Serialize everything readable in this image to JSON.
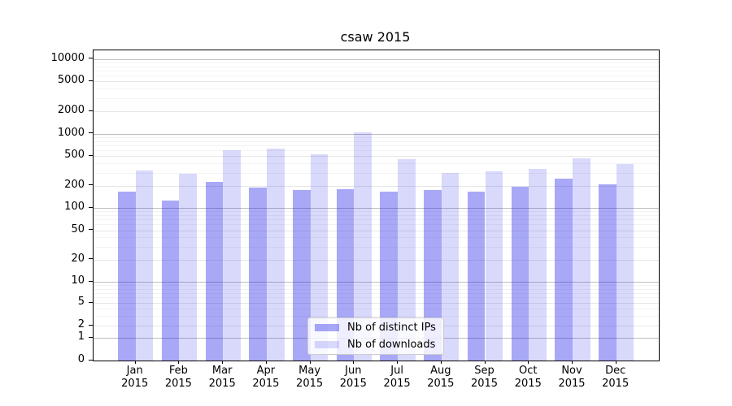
{
  "title": "csaw 2015",
  "chart_data": {
    "type": "bar",
    "title": "csaw 2015",
    "categories": [
      "Jan",
      "Feb",
      "Mar",
      "Apr",
      "May",
      "Jun",
      "Jul",
      "Aug",
      "Sep",
      "Oct",
      "Nov",
      "Dec"
    ],
    "x_tick_year": "2015",
    "series": [
      {
        "name": "Nb of distinct IPs",
        "color": "rgba(30,30,235,0.39)",
        "values": [
          165,
          125,
          225,
          190,
          175,
          180,
          165,
          175,
          165,
          195,
          248,
          210
        ]
      },
      {
        "name": "Nb of downloads",
        "color": "rgba(30,30,235,0.17)",
        "values": [
          325,
          290,
          600,
          640,
          530,
          1050,
          460,
          300,
          310,
          340,
          470,
          395
        ]
      }
    ],
    "yscale": "symlog",
    "ylim": [
      0,
      14000
    ],
    "yticks": [
      10000,
      5000,
      2000,
      1000,
      500,
      200,
      100,
      50,
      20,
      10,
      5,
      2,
      1,
      0
    ],
    "grid": true,
    "legend_position": "lower center",
    "legend_entries": [
      "Nb of distinct IPs",
      "Nb of downloads"
    ]
  },
  "colors": {
    "grid_major": "#bdbdbd",
    "grid_labeled_minor": "#e6e6e6",
    "grid_minor": "#f3f3f3",
    "axis": "#000000",
    "background": "#ffffff"
  }
}
